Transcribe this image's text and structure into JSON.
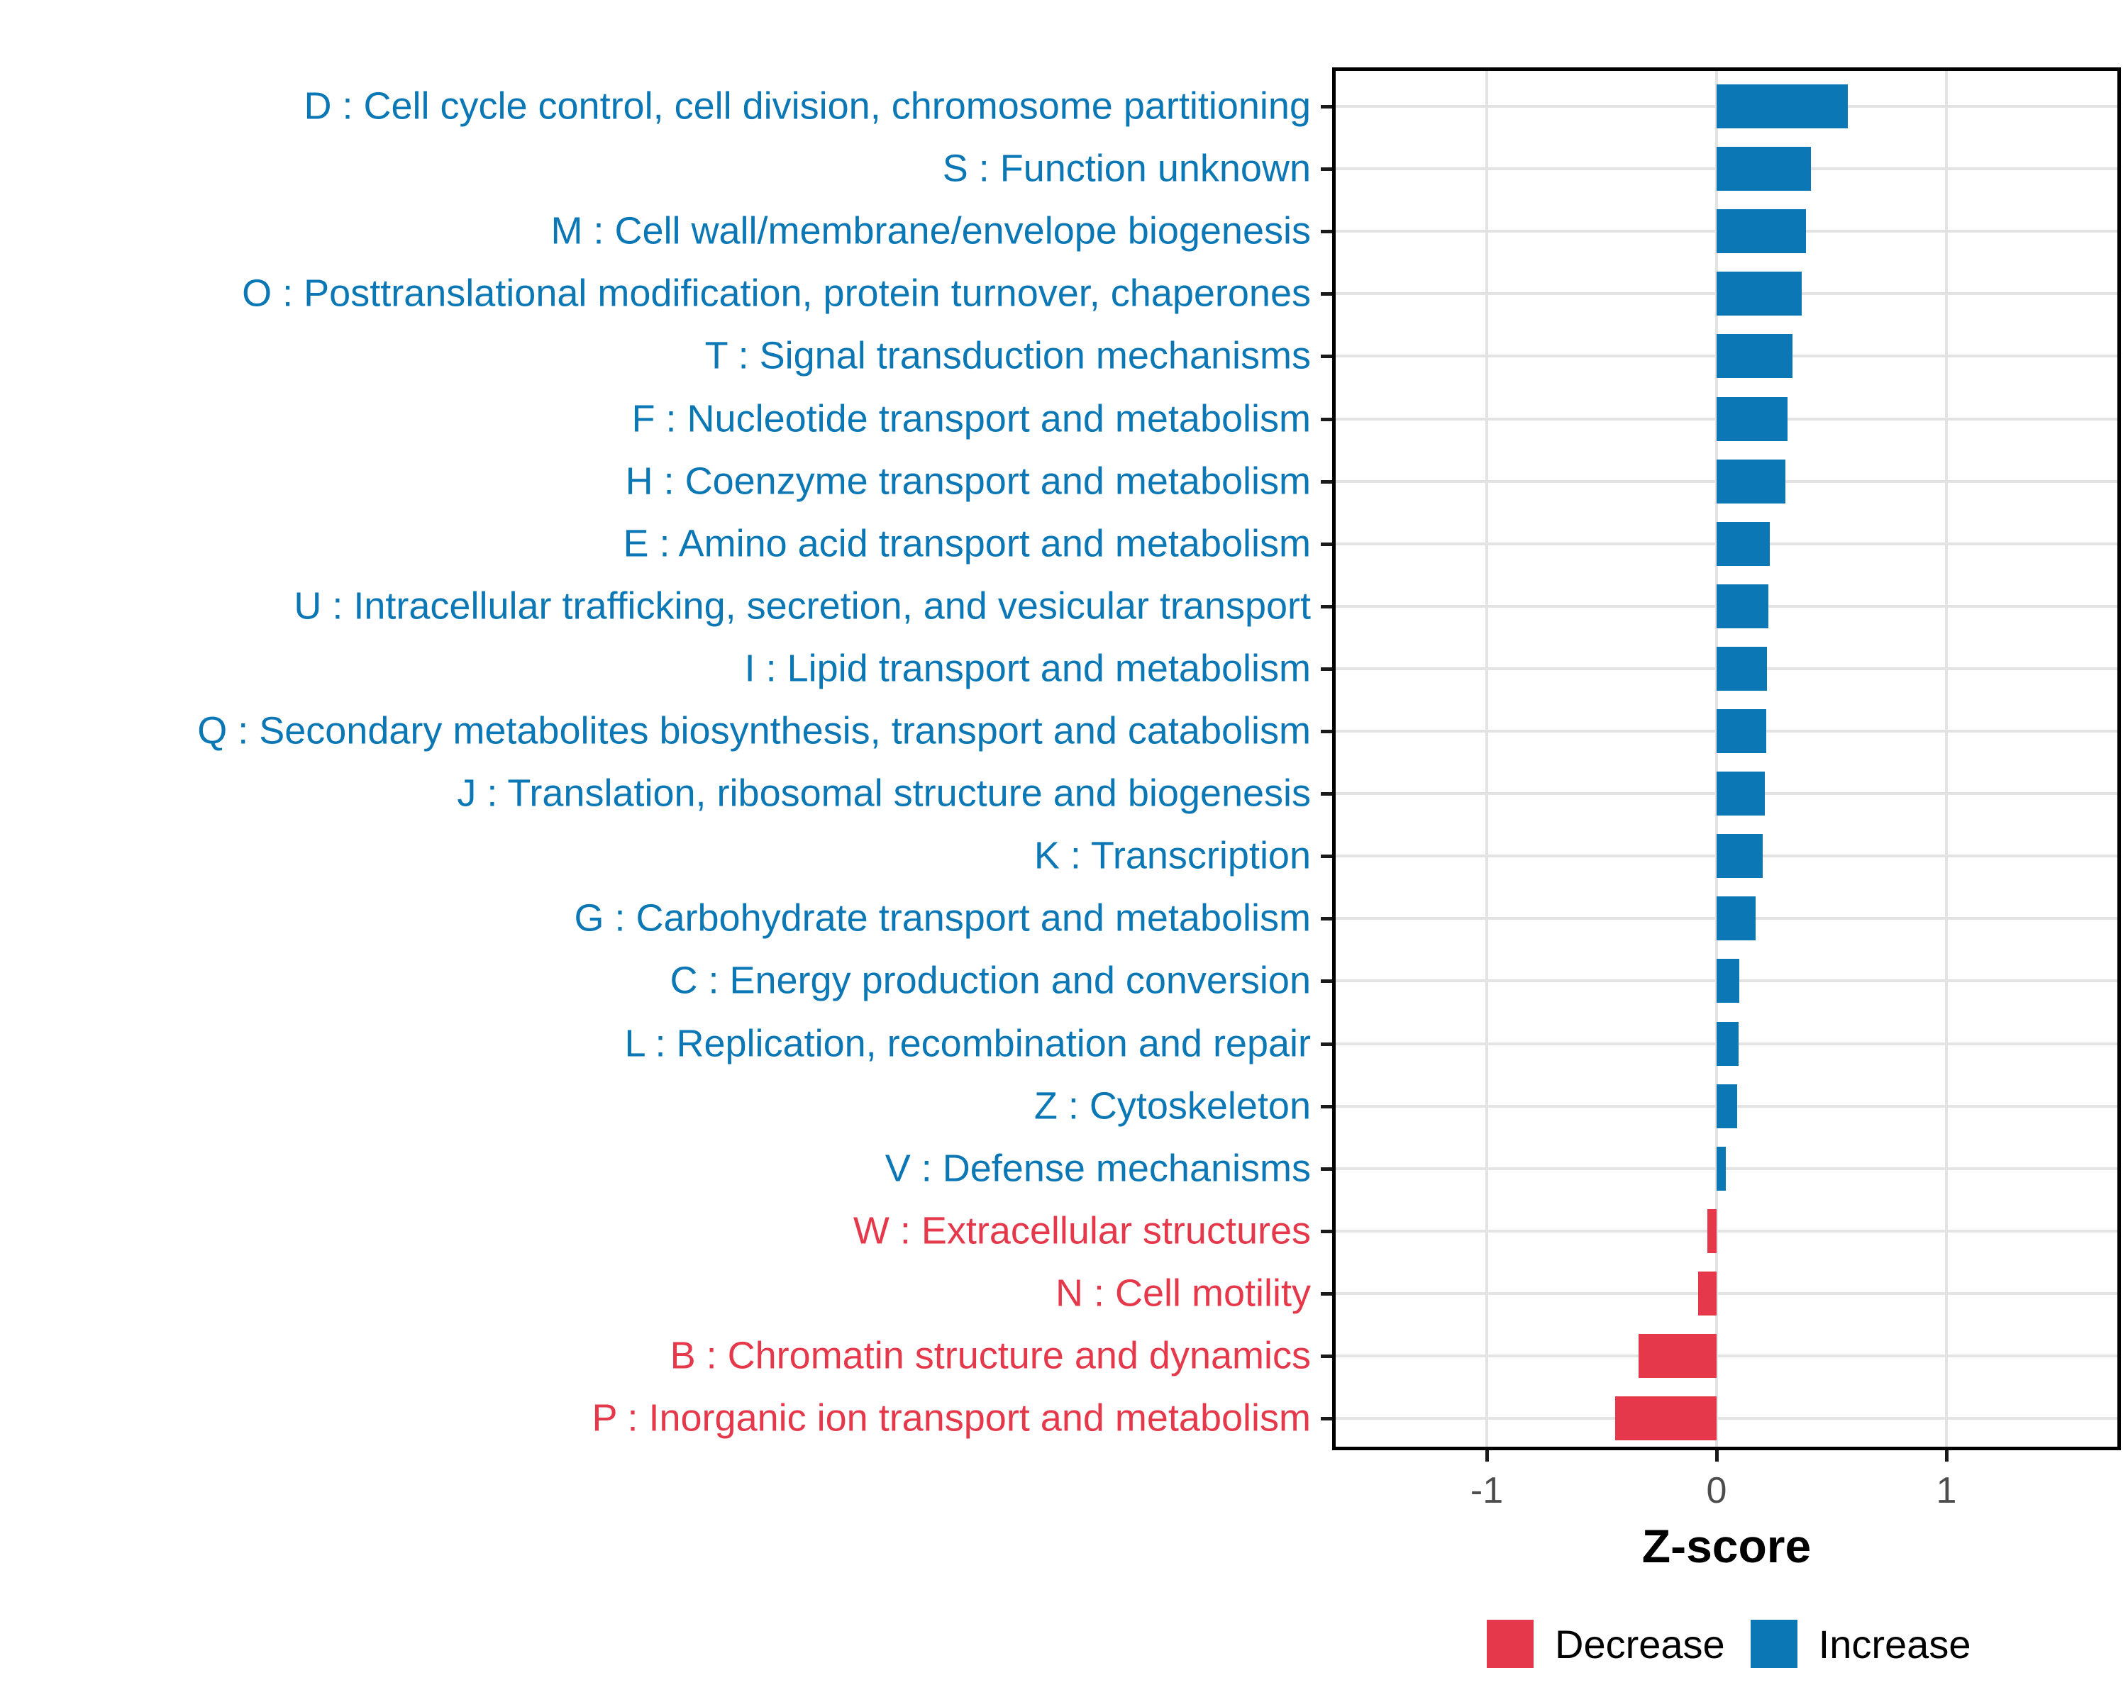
{
  "chart_data": {
    "type": "bar",
    "orientation": "horizontal",
    "title": "",
    "xlabel": "Z-score",
    "ylabel": "",
    "xlim": [
      -1.67,
      1.76
    ],
    "x_ticks": [
      {
        "label": "-1",
        "value": -1
      },
      {
        "label": "0",
        "value": 0
      },
      {
        "label": "1",
        "value": 1
      }
    ],
    "grid": "major-only",
    "legend_position": "bottom-right",
    "colors": {
      "Increase": "#0B77B5",
      "Decrease": "#E5394B"
    },
    "legend": [
      {
        "label": "Decrease",
        "group": "Decrease",
        "color": "#E5394B"
      },
      {
        "label": "Increase",
        "group": "Increase",
        "color": "#0B77B5"
      }
    ],
    "rows": [
      {
        "label": "D : Cell cycle control, cell division, chromosome partitioning",
        "value": 0.57,
        "group": "Increase"
      },
      {
        "label": "S : Function unknown",
        "value": 0.41,
        "group": "Increase"
      },
      {
        "label": "M : Cell wall/membrane/envelope biogenesis",
        "value": 0.39,
        "group": "Increase"
      },
      {
        "label": "O : Posttranslational modification, protein turnover, chaperones",
        "value": 0.37,
        "group": "Increase"
      },
      {
        "label": "T : Signal transduction mechanisms",
        "value": 0.33,
        "group": "Increase"
      },
      {
        "label": "F : Nucleotide transport and metabolism",
        "value": 0.31,
        "group": "Increase"
      },
      {
        "label": "H : Coenzyme transport and metabolism",
        "value": 0.3,
        "group": "Increase"
      },
      {
        "label": "E : Amino acid transport and metabolism",
        "value": 0.23,
        "group": "Increase"
      },
      {
        "label": "U : Intracellular trafficking, secretion, and vesicular transport",
        "value": 0.225,
        "group": "Increase"
      },
      {
        "label": "I : Lipid transport and metabolism",
        "value": 0.22,
        "group": "Increase"
      },
      {
        "label": "Q : Secondary metabolites biosynthesis, transport and catabolism",
        "value": 0.215,
        "group": "Increase"
      },
      {
        "label": "J : Translation, ribosomal structure and biogenesis",
        "value": 0.21,
        "group": "Increase"
      },
      {
        "label": "K : Transcription",
        "value": 0.2,
        "group": "Increase"
      },
      {
        "label": "G : Carbohydrate transport and metabolism",
        "value": 0.17,
        "group": "Increase"
      },
      {
        "label": "C : Energy production and conversion",
        "value": 0.1,
        "group": "Increase"
      },
      {
        "label": "L : Replication, recombination and repair",
        "value": 0.095,
        "group": "Increase"
      },
      {
        "label": "Z : Cytoskeleton",
        "value": 0.09,
        "group": "Increase"
      },
      {
        "label": "V : Defense mechanisms",
        "value": 0.04,
        "group": "Increase"
      },
      {
        "label": "W : Extracellular structures",
        "value": -0.04,
        "group": "Decrease"
      },
      {
        "label": "N : Cell motility",
        "value": -0.08,
        "group": "Decrease"
      },
      {
        "label": "B : Chromatin structure and dynamics",
        "value": -0.34,
        "group": "Decrease"
      },
      {
        "label": "P : Inorganic ion transport and metabolism",
        "value": -0.44,
        "group": "Decrease"
      }
    ]
  }
}
